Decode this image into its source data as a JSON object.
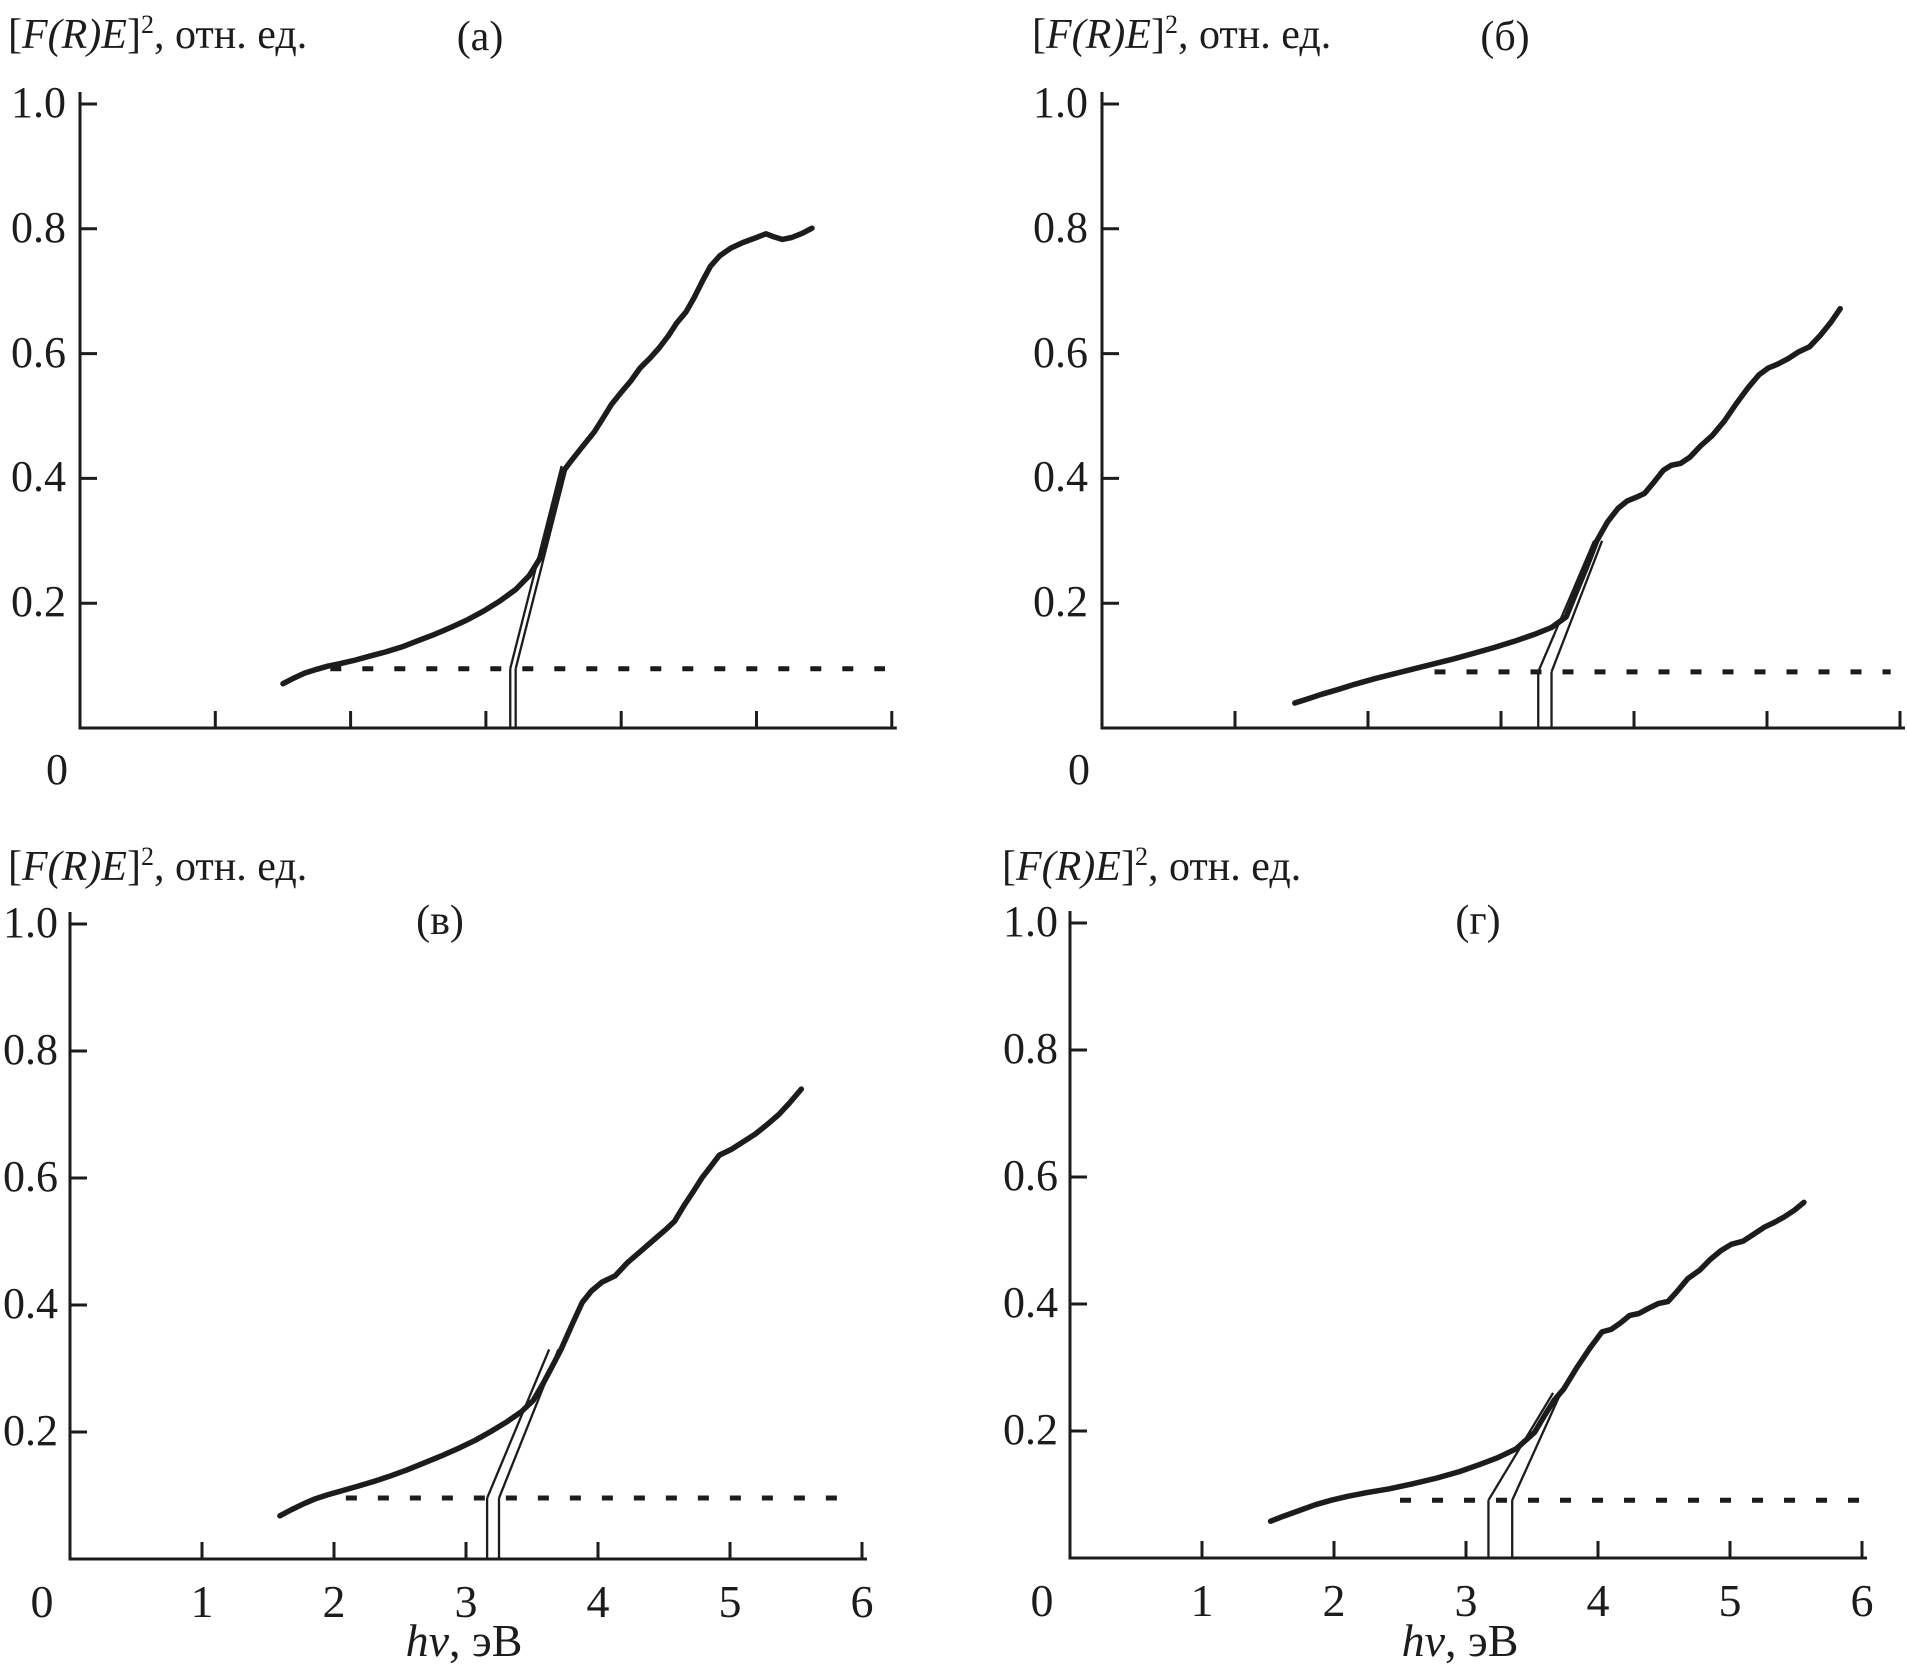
{
  "figure": {
    "background": "#ffffff",
    "ink": "#1c1c1c",
    "y_axis_title": {
      "open": "[",
      "quantity": "F(R)E",
      "close": "]",
      "exponent": "2",
      "units": ", отн. ед."
    },
    "x_axis_title": {
      "quantity": "hν",
      "units": ", эВ"
    },
    "y_tick_labels": [
      "0.2",
      "0.4",
      "0.6",
      "0.8",
      "1.0"
    ],
    "x_tick_labels": [
      "0",
      "1",
      "2",
      "3",
      "4",
      "5",
      "6"
    ],
    "origin_label": "0"
  },
  "chart_data": [
    {
      "id": "a",
      "panel": "(а)",
      "type": "line",
      "title": "[F(R)E]², отн. ед.",
      "ylabel": "[F(R)E]², отн. ед.",
      "xlabel": "",
      "xlim": [
        0,
        6
      ],
      "ylim": [
        0,
        1.0
      ],
      "xticks": [
        0,
        1,
        2,
        3,
        4,
        5,
        6
      ],
      "yticks": [
        0.2,
        0.4,
        0.6,
        0.8,
        1.0
      ],
      "x_axis_numbers_shown": false,
      "curve": [
        [
          1.5,
          0.071
        ],
        [
          1.58,
          0.08
        ],
        [
          1.66,
          0.088
        ],
        [
          1.75,
          0.094
        ],
        [
          1.83,
          0.099
        ],
        [
          1.92,
          0.103
        ],
        [
          2.02,
          0.108
        ],
        [
          2.14,
          0.115
        ],
        [
          2.26,
          0.122
        ],
        [
          2.38,
          0.13
        ],
        [
          2.5,
          0.14
        ],
        [
          2.62,
          0.15
        ],
        [
          2.74,
          0.161
        ],
        [
          2.86,
          0.173
        ],
        [
          2.98,
          0.187
        ],
        [
          3.1,
          0.203
        ],
        [
          3.22,
          0.222
        ],
        [
          3.32,
          0.244
        ],
        [
          3.4,
          0.272
        ],
        [
          3.48,
          0.338
        ],
        [
          3.56,
          0.408
        ],
        [
          3.63,
          0.428
        ],
        [
          3.71,
          0.45
        ],
        [
          3.8,
          0.474
        ],
        [
          3.87,
          0.498
        ],
        [
          3.93,
          0.519
        ],
        [
          4.0,
          0.538
        ],
        [
          4.07,
          0.556
        ],
        [
          4.14,
          0.577
        ],
        [
          4.21,
          0.592
        ],
        [
          4.28,
          0.609
        ],
        [
          4.35,
          0.629
        ],
        [
          4.41,
          0.649
        ],
        [
          4.48,
          0.667
        ],
        [
          4.54,
          0.69
        ],
        [
          4.6,
          0.716
        ],
        [
          4.66,
          0.74
        ],
        [
          4.73,
          0.757
        ],
        [
          4.81,
          0.769
        ],
        [
          4.9,
          0.778
        ],
        [
          5.0,
          0.786
        ],
        [
          5.07,
          0.792
        ],
        [
          5.13,
          0.787
        ],
        [
          5.19,
          0.783
        ],
        [
          5.26,
          0.786
        ],
        [
          5.34,
          0.793
        ],
        [
          5.41,
          0.801
        ]
      ],
      "dotted_baseline": {
        "y": 0.095,
        "x_start": 1.85,
        "x_end": 5.95
      },
      "tangent_lines": [
        {
          "x_intercept": 3.18,
          "top": [
            3.56,
            0.42
          ]
        },
        {
          "x_intercept": 3.22,
          "top": [
            3.6,
            0.42
          ]
        }
      ]
    },
    {
      "id": "b",
      "panel": "(б)",
      "type": "line",
      "title": "[F(R)E]², отн. ед.",
      "ylabel": "[F(R)E]², отн. ед.",
      "xlabel": "",
      "xlim": [
        0,
        6
      ],
      "ylim": [
        0,
        1.0
      ],
      "xticks": [
        0,
        1,
        2,
        3,
        4,
        5,
        6
      ],
      "yticks": [
        0.2,
        0.4,
        0.6,
        0.8,
        1.0
      ],
      "x_axis_numbers_shown": false,
      "curve": [
        [
          1.45,
          0.04
        ],
        [
          1.55,
          0.047
        ],
        [
          1.65,
          0.054
        ],
        [
          1.78,
          0.062
        ],
        [
          1.9,
          0.07
        ],
        [
          2.05,
          0.079
        ],
        [
          2.2,
          0.087
        ],
        [
          2.35,
          0.095
        ],
        [
          2.5,
          0.103
        ],
        [
          2.65,
          0.111
        ],
        [
          2.8,
          0.12
        ],
        [
          2.95,
          0.129
        ],
        [
          3.1,
          0.139
        ],
        [
          3.25,
          0.15
        ],
        [
          3.38,
          0.161
        ],
        [
          3.49,
          0.178
        ],
        [
          3.56,
          0.215
        ],
        [
          3.64,
          0.256
        ],
        [
          3.72,
          0.3
        ],
        [
          3.8,
          0.33
        ],
        [
          3.88,
          0.352
        ],
        [
          3.95,
          0.364
        ],
        [
          4.02,
          0.37
        ],
        [
          4.08,
          0.376
        ],
        [
          4.15,
          0.394
        ],
        [
          4.22,
          0.413
        ],
        [
          4.28,
          0.421
        ],
        [
          4.35,
          0.424
        ],
        [
          4.42,
          0.434
        ],
        [
          4.5,
          0.452
        ],
        [
          4.59,
          0.469
        ],
        [
          4.68,
          0.492
        ],
        [
          4.77,
          0.52
        ],
        [
          4.86,
          0.546
        ],
        [
          4.94,
          0.566
        ],
        [
          5.01,
          0.577
        ],
        [
          5.08,
          0.583
        ],
        [
          5.16,
          0.592
        ],
        [
          5.24,
          0.603
        ],
        [
          5.32,
          0.611
        ],
        [
          5.4,
          0.629
        ],
        [
          5.48,
          0.65
        ],
        [
          5.55,
          0.672
        ]
      ],
      "dotted_baseline": {
        "y": 0.09,
        "x_start": 2.5,
        "x_end": 5.93
      },
      "tangent_lines": [
        {
          "x_intercept": 3.28,
          "top": [
            3.7,
            0.3
          ]
        },
        {
          "x_intercept": 3.38,
          "top": [
            3.76,
            0.3
          ]
        }
      ]
    },
    {
      "id": "v",
      "panel": "(в)",
      "type": "line",
      "title": "[F(R)E]², отн. ед.",
      "ylabel": "[F(R)E]², отн. ед.",
      "xlabel": "hν, эВ",
      "xlim": [
        0,
        6
      ],
      "ylim": [
        0,
        1.0
      ],
      "xticks": [
        0,
        1,
        2,
        3,
        4,
        5,
        6
      ],
      "yticks": [
        0.2,
        0.4,
        0.6,
        0.8,
        1.0
      ],
      "x_axis_numbers_shown": true,
      "curve": [
        [
          1.59,
          0.068
        ],
        [
          1.68,
          0.078
        ],
        [
          1.77,
          0.087
        ],
        [
          1.86,
          0.095
        ],
        [
          1.95,
          0.101
        ],
        [
          2.05,
          0.107
        ],
        [
          2.17,
          0.114
        ],
        [
          2.3,
          0.122
        ],
        [
          2.43,
          0.131
        ],
        [
          2.55,
          0.14
        ],
        [
          2.68,
          0.151
        ],
        [
          2.81,
          0.162
        ],
        [
          2.94,
          0.174
        ],
        [
          3.07,
          0.187
        ],
        [
          3.19,
          0.201
        ],
        [
          3.31,
          0.216
        ],
        [
          3.42,
          0.232
        ],
        [
          3.51,
          0.25
        ],
        [
          3.58,
          0.275
        ],
        [
          3.65,
          0.302
        ],
        [
          3.72,
          0.33
        ],
        [
          3.81,
          0.372
        ],
        [
          3.88,
          0.404
        ],
        [
          3.95,
          0.422
        ],
        [
          4.03,
          0.436
        ],
        [
          4.13,
          0.446
        ],
        [
          4.22,
          0.466
        ],
        [
          4.33,
          0.486
        ],
        [
          4.43,
          0.504
        ],
        [
          4.52,
          0.52
        ],
        [
          4.58,
          0.532
        ],
        [
          4.65,
          0.556
        ],
        [
          4.72,
          0.578
        ],
        [
          4.79,
          0.601
        ],
        [
          4.85,
          0.617
        ],
        [
          4.92,
          0.636
        ],
        [
          5.01,
          0.645
        ],
        [
          5.1,
          0.657
        ],
        [
          5.19,
          0.669
        ],
        [
          5.28,
          0.684
        ],
        [
          5.37,
          0.7
        ],
        [
          5.45,
          0.718
        ],
        [
          5.54,
          0.74
        ]
      ],
      "dotted_baseline": {
        "y": 0.096,
        "x_start": 2.09,
        "x_end": 5.95
      },
      "tangent_lines": [
        {
          "x_intercept": 3.16,
          "top": [
            3.63,
            0.33
          ]
        },
        {
          "x_intercept": 3.25,
          "top": [
            3.7,
            0.33
          ]
        }
      ]
    },
    {
      "id": "g",
      "panel": "(г)",
      "type": "line",
      "title": "[F(R)E]², отн. ед.",
      "ylabel": "[F(R)E]², отн. ед.",
      "xlabel": "hν, эВ",
      "xlim": [
        0,
        6
      ],
      "ylim": [
        0,
        1.0
      ],
      "xticks": [
        0,
        1,
        2,
        3,
        4,
        5,
        6
      ],
      "yticks": [
        0.2,
        0.4,
        0.6,
        0.8,
        1.0
      ],
      "x_axis_numbers_shown": true,
      "curve": [
        [
          1.52,
          0.058
        ],
        [
          1.62,
          0.066
        ],
        [
          1.74,
          0.075
        ],
        [
          1.86,
          0.084
        ],
        [
          1.98,
          0.091
        ],
        [
          2.1,
          0.097
        ],
        [
          2.25,
          0.103
        ],
        [
          2.42,
          0.109
        ],
        [
          2.6,
          0.117
        ],
        [
          2.78,
          0.126
        ],
        [
          2.95,
          0.136
        ],
        [
          3.1,
          0.147
        ],
        [
          3.24,
          0.158
        ],
        [
          3.38,
          0.172
        ],
        [
          3.52,
          0.198
        ],
        [
          3.6,
          0.226
        ],
        [
          3.67,
          0.249
        ],
        [
          3.74,
          0.266
        ],
        [
          3.84,
          0.3
        ],
        [
          3.94,
          0.331
        ],
        [
          4.03,
          0.356
        ],
        [
          4.1,
          0.36
        ],
        [
          4.17,
          0.37
        ],
        [
          4.24,
          0.382
        ],
        [
          4.31,
          0.385
        ],
        [
          4.39,
          0.394
        ],
        [
          4.46,
          0.401
        ],
        [
          4.53,
          0.404
        ],
        [
          4.6,
          0.42
        ],
        [
          4.68,
          0.44
        ],
        [
          4.77,
          0.453
        ],
        [
          4.85,
          0.47
        ],
        [
          4.93,
          0.484
        ],
        [
          5.01,
          0.494
        ],
        [
          5.1,
          0.499
        ],
        [
          5.18,
          0.51
        ],
        [
          5.26,
          0.521
        ],
        [
          5.34,
          0.529
        ],
        [
          5.41,
          0.537
        ],
        [
          5.49,
          0.548
        ],
        [
          5.56,
          0.56
        ]
      ],
      "dotted_baseline": {
        "y": 0.091,
        "x_start": 2.5,
        "x_end": 5.98
      },
      "tangent_lines": [
        {
          "x_intercept": 3.17,
          "top": [
            3.66,
            0.26
          ]
        },
        {
          "x_intercept": 3.35,
          "top": [
            3.74,
            0.27
          ]
        }
      ]
    }
  ]
}
